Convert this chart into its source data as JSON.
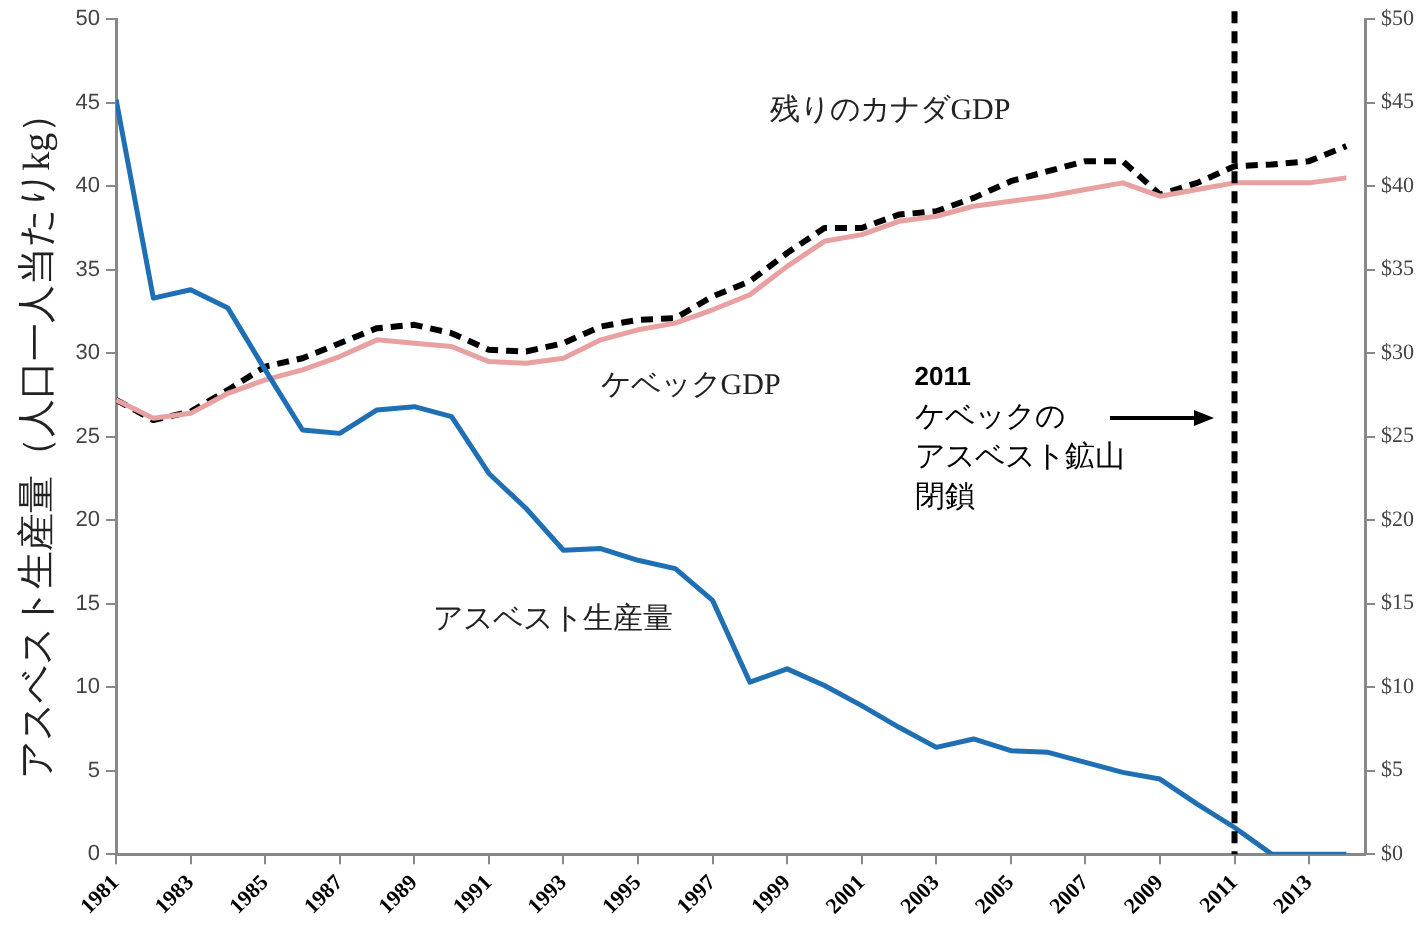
{
  "chart_data": {
    "type": "line",
    "ylabel": "アスベスト生産量（人口一人当たりkg）",
    "x": [
      1981,
      1982,
      1983,
      1984,
      1985,
      1986,
      1987,
      1988,
      1989,
      1990,
      1991,
      1992,
      1993,
      1994,
      1995,
      1996,
      1997,
      1998,
      1999,
      2000,
      2001,
      2002,
      2003,
      2004,
      2005,
      2006,
      2007,
      2008,
      2009,
      2010,
      2011,
      2012,
      2013,
      2014
    ],
    "series": [
      {
        "name": "アスベスト生産量",
        "color": "#1f6fb5",
        "values": [
          45.2,
          33.3,
          33.8,
          32.7,
          29,
          25.4,
          25.2,
          26.6,
          26.8,
          26.2,
          22.8,
          20.7,
          18.2,
          18.3,
          17.6,
          17.1,
          15.2,
          10.3,
          11.1,
          10.1,
          8.9,
          7.6,
          6.4,
          6.9,
          6.2,
          6.1,
          5.5,
          4.9,
          4.5,
          3.0,
          1.6,
          0,
          0,
          0
        ]
      },
      {
        "name": "ケベックGDP",
        "color": "#e8a0a0",
        "axis": "y2",
        "values": [
          27.2,
          26.1,
          26.4,
          27.6,
          28.4,
          29.0,
          29.8,
          30.8,
          30.6,
          30.4,
          29.5,
          29.4,
          29.7,
          30.8,
          31.4,
          31.8,
          32.6,
          33.5,
          35.2,
          36.7,
          37.1,
          37.9,
          38.2,
          38.8,
          39.1,
          39.4,
          39.8,
          40.2,
          39.4,
          39.8,
          40.2,
          40.2,
          40.2,
          40.5
        ]
      },
      {
        "name": "残りのカナダGDP",
        "color": "#000000",
        "axis": "y2",
        "line_style": "dashed",
        "values": [
          27.2,
          26.0,
          26.5,
          27.8,
          29.2,
          29.7,
          30.6,
          31.5,
          31.7,
          31.2,
          30.2,
          30.1,
          30.6,
          31.6,
          32.0,
          32.1,
          33.4,
          34.3,
          36.0,
          37.5,
          37.5,
          38.3,
          38.5,
          39.3,
          40.3,
          40.9,
          41.5,
          41.5,
          39.5,
          40.2,
          41.2,
          41.3,
          41.5,
          42.4
        ]
      }
    ],
    "xlim": [
      1981,
      2014.5
    ],
    "xticks": [
      1981,
      1983,
      1985,
      1987,
      1989,
      1991,
      1993,
      1995,
      1997,
      1999,
      2001,
      2003,
      2005,
      2007,
      2009,
      2011,
      2013
    ],
    "ylim": [
      0,
      50
    ],
    "yticks": [
      0,
      5,
      10,
      15,
      20,
      25,
      30,
      35,
      40,
      45,
      50
    ],
    "y2lim": [
      0,
      50
    ],
    "y2ticks": [
      {
        "value": 0,
        "label": "$0"
      },
      {
        "value": 5,
        "label": "$5"
      },
      {
        "value": 10,
        "label": "$10"
      },
      {
        "value": 15,
        "label": "$15"
      },
      {
        "value": 20,
        "label": "$20"
      },
      {
        "value": 25,
        "label": "$25"
      },
      {
        "value": 30,
        "label": "$30"
      },
      {
        "value": 35,
        "label": "$35"
      },
      {
        "value": 40,
        "label": "$40"
      },
      {
        "value": 45,
        "label": "$45"
      },
      {
        "value": 50,
        "label": "$50"
      }
    ],
    "ref_lines": [
      {
        "axis": "x",
        "value": 2011,
        "color": "#000000",
        "line_style": "dashed"
      }
    ],
    "annotations": [
      "2011",
      "ケベックの",
      "アスベスト鉱山",
      "閉鎖"
    ],
    "grid": false,
    "legend": false,
    "marker": "none",
    "line_style": "solid"
  }
}
